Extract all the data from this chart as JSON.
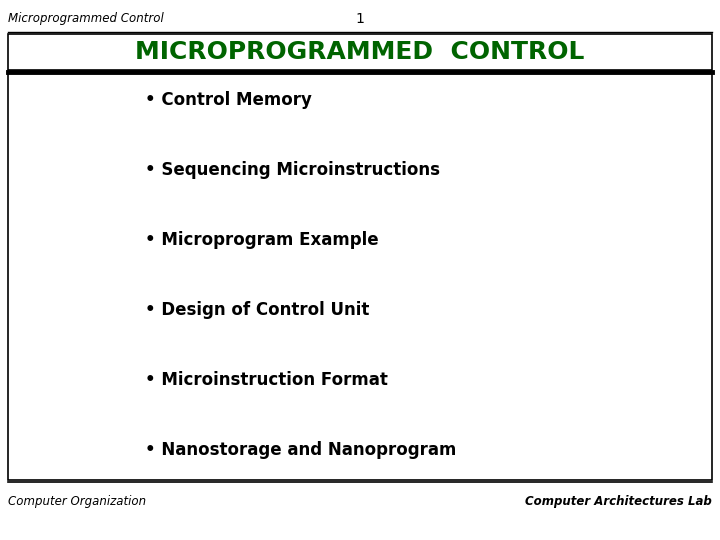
{
  "top_left_text": "Microprogrammed Control",
  "top_center_text": "1",
  "title_text": "MICROPROGRAMMED  CONTROL",
  "title_color": "#006400",
  "bullet_items": [
    "Control Memory",
    "Sequencing Microinstructions",
    "Microprogram Example",
    "Design of Control Unit",
    "Microinstruction Format",
    "Nanostorage and Nanoprogram"
  ],
  "bullet_color": "#000000",
  "bottom_left_text": "Computer Organization",
  "bottom_right_text": "Computer Architectures Lab",
  "background_color": "#ffffff",
  "border_color": "#000000",
  "slide_bg": "#ffffff"
}
